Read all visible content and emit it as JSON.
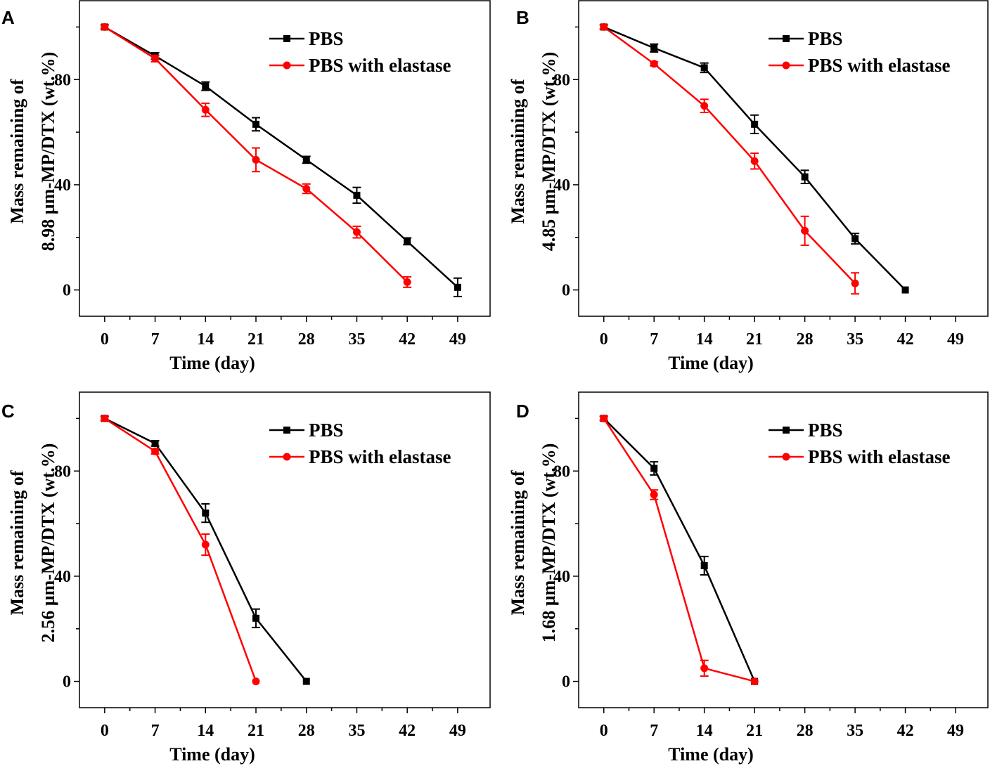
{
  "chart_data": [
    {
      "panel": "A",
      "type": "line",
      "ylabel_line1": "Mass remaining of",
      "ylabel_line2": "8.98 µm-MP/DTX (wt.%)",
      "xlabel": "Time (day)",
      "xticks": [
        "0",
        "7",
        "14",
        "21",
        "28",
        "35",
        "42",
        "49"
      ],
      "yticks": [
        "0",
        "40",
        "80"
      ],
      "xlim": [
        -3.5,
        53.5
      ],
      "ylim": [
        -10,
        110
      ],
      "series": [
        {
          "name": "PBS",
          "color": "#000000",
          "marker": "square",
          "x": [
            0,
            7,
            14,
            21,
            28,
            35,
            42,
            49
          ],
          "y": [
            100,
            89,
            77.5,
            63,
            49.5,
            36,
            18.5,
            1
          ],
          "err": [
            0.8,
            1.2,
            1.6,
            2.5,
            1.3,
            3,
            1.3,
            3.5
          ]
        },
        {
          "name": "PBS with elastase",
          "color": "#ff0000",
          "marker": "circle",
          "x": [
            0,
            7,
            14,
            21,
            28,
            35,
            42
          ],
          "y": [
            100,
            88,
            68.5,
            49.5,
            38.5,
            22,
            3
          ],
          "err": [
            0.8,
            1.2,
            2.5,
            4.5,
            1.8,
            2.2,
            2
          ]
        }
      ]
    },
    {
      "panel": "B",
      "type": "line",
      "ylabel_line1": "Mass remaining of",
      "ylabel_line2": "4.85 µm-MP/DTX (wt.%)",
      "xlabel": "Time (day)",
      "xticks": [
        "0",
        "7",
        "14",
        "21",
        "28",
        "35",
        "42",
        "49"
      ],
      "yticks": [
        "0",
        "40",
        "80"
      ],
      "xlim": [
        -3.5,
        53.5
      ],
      "ylim": [
        -10,
        110
      ],
      "series": [
        {
          "name": "PBS",
          "color": "#000000",
          "marker": "square",
          "x": [
            0,
            7,
            14,
            21,
            28,
            35,
            42
          ],
          "y": [
            100,
            92,
            84.5,
            63,
            43,
            19.5,
            0
          ],
          "err": [
            0.8,
            1.5,
            1.8,
            3.5,
            2.5,
            2,
            0.5
          ]
        },
        {
          "name": "PBS with elastase",
          "color": "#ff0000",
          "marker": "circle",
          "x": [
            0,
            7,
            14,
            21,
            28,
            35
          ],
          "y": [
            100,
            86,
            70,
            49,
            22.5,
            2.5
          ],
          "err": [
            0.8,
            0.8,
            2.5,
            3,
            5.5,
            4
          ]
        }
      ]
    },
    {
      "panel": "C",
      "type": "line",
      "ylabel_line1": "Mass remaining of",
      "ylabel_line2": "2.56 µm-MP/DTX (wt.%)",
      "xlabel": "Time (day)",
      "xticks": [
        "0",
        "7",
        "14",
        "21",
        "28",
        "35",
        "42",
        "49"
      ],
      "yticks": [
        "0",
        "40",
        "80"
      ],
      "xlim": [
        -3.5,
        53.5
      ],
      "ylim": [
        -10,
        110
      ],
      "series": [
        {
          "name": "PBS",
          "color": "#000000",
          "marker": "square",
          "x": [
            0,
            7,
            14,
            21,
            28
          ],
          "y": [
            100,
            90.5,
            64,
            24,
            0
          ],
          "err": [
            0.8,
            1,
            3.5,
            3.5,
            0.5
          ]
        },
        {
          "name": "PBS with elastase",
          "color": "#ff0000",
          "marker": "circle",
          "x": [
            0,
            7,
            14,
            21
          ],
          "y": [
            100,
            87.5,
            52,
            0
          ],
          "err": [
            0.8,
            1,
            4,
            0.5
          ]
        }
      ]
    },
    {
      "panel": "D",
      "type": "line",
      "ylabel_line1": "Mass remaining of",
      "ylabel_line2": "1.68 µm-MP/DTX (wt.%)",
      "xlabel": "Time (day)",
      "xticks": [
        "0",
        "7",
        "14",
        "21",
        "28",
        "35",
        "42",
        "49"
      ],
      "yticks": [
        "0",
        "40",
        "80"
      ],
      "xlim": [
        -3.5,
        53.5
      ],
      "ylim": [
        -10,
        110
      ],
      "series": [
        {
          "name": "PBS",
          "color": "#000000",
          "marker": "square",
          "x": [
            0,
            7,
            14,
            21
          ],
          "y": [
            100,
            81,
            44,
            0
          ],
          "err": [
            0.8,
            2.5,
            3.5,
            0.5
          ]
        },
        {
          "name": "PBS with elastase",
          "color": "#ff0000",
          "marker": "circle",
          "x": [
            0,
            7,
            14,
            21
          ],
          "y": [
            100,
            71,
            5,
            0
          ],
          "err": [
            0.8,
            1.8,
            3,
            0.5
          ]
        }
      ]
    }
  ]
}
